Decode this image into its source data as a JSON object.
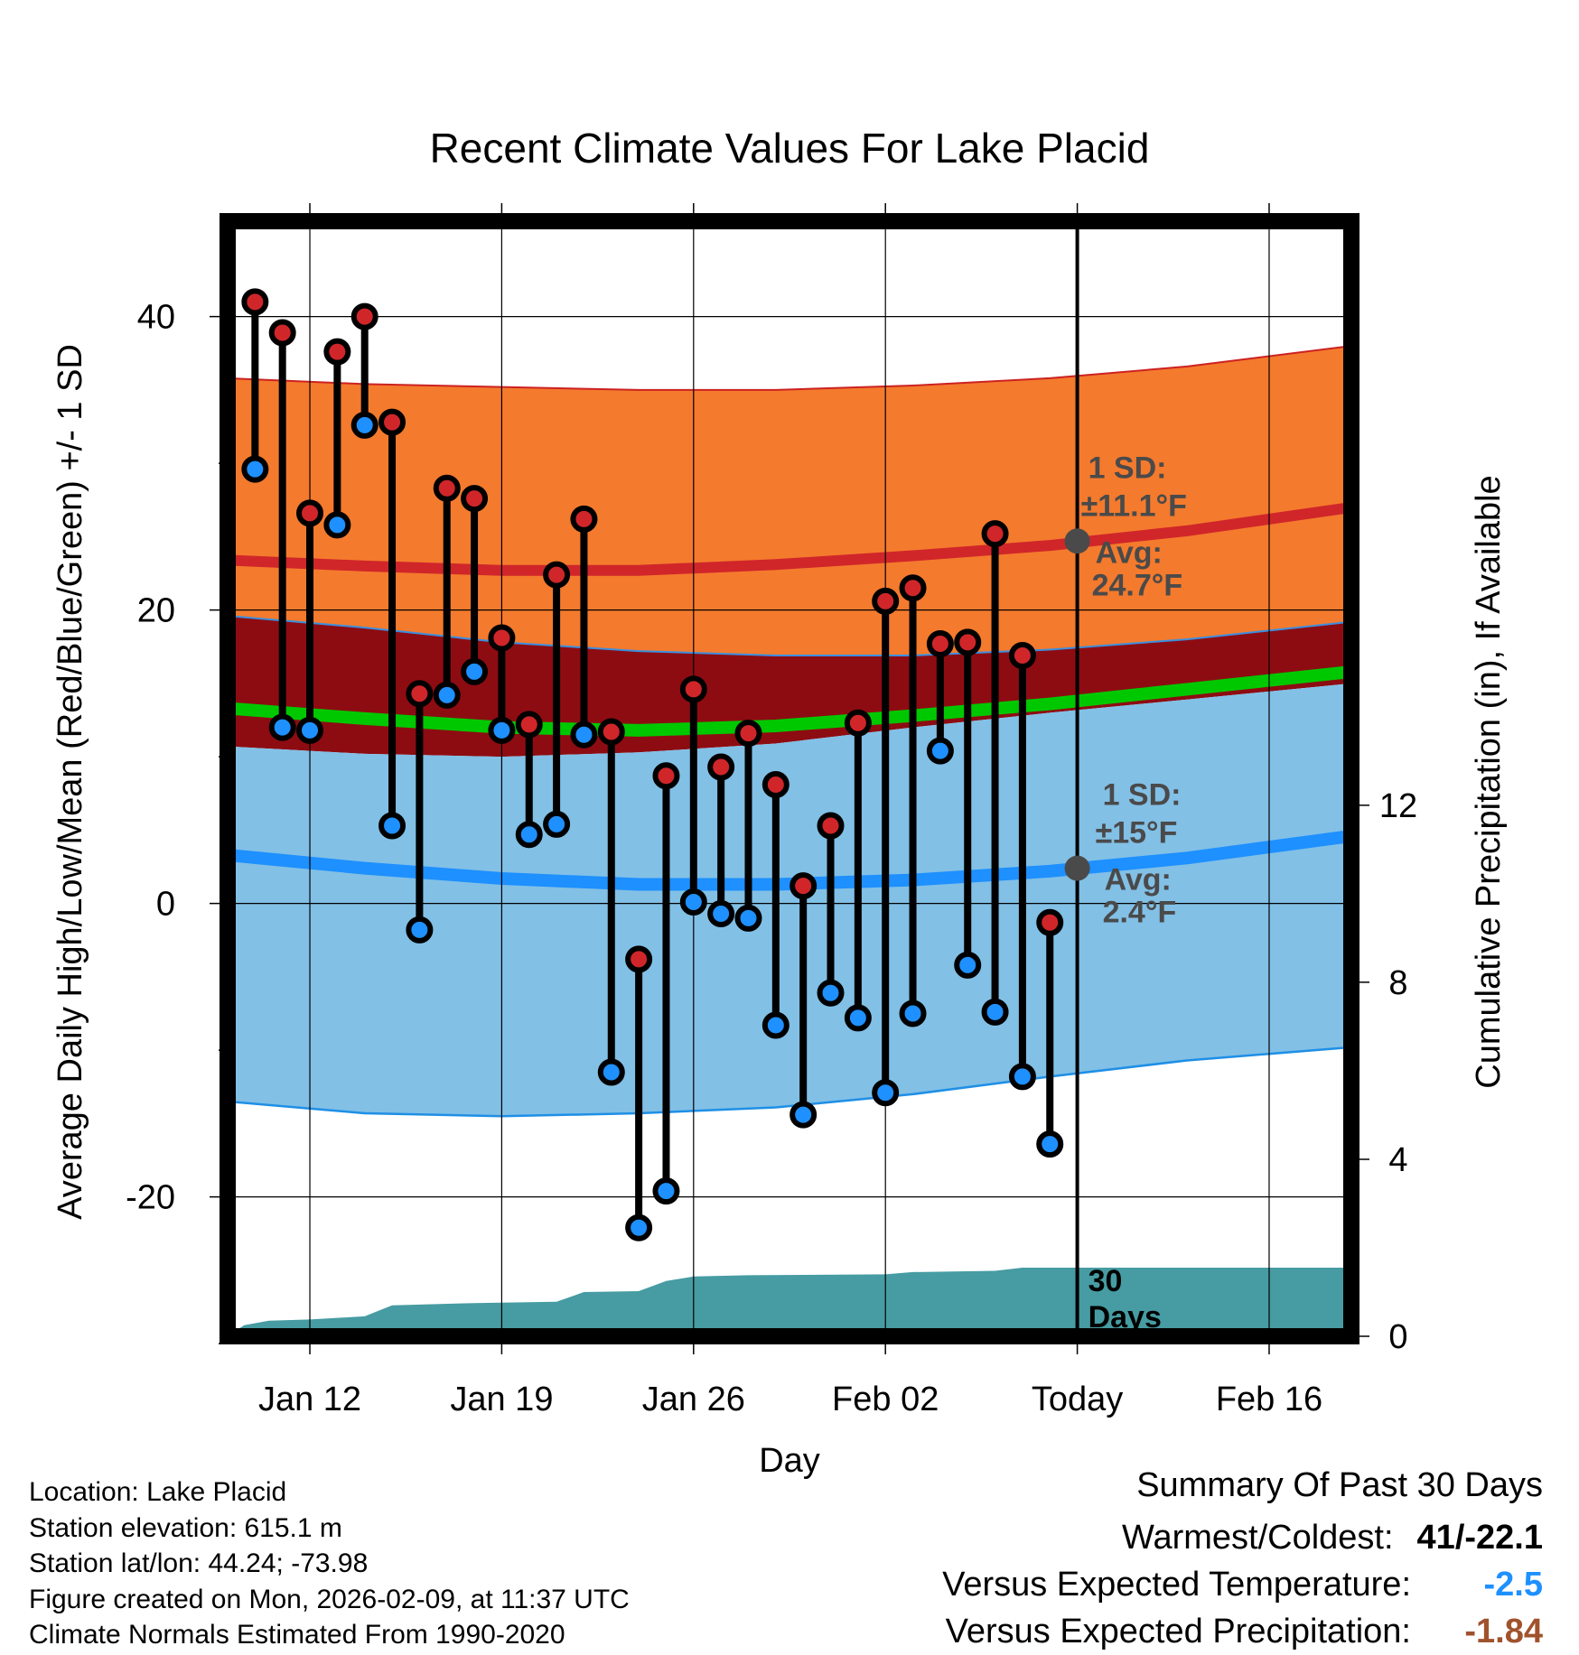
{
  "chart_data": {
    "type": "line",
    "title": "Recent Climate Values For Lake Placid",
    "xlabel": "Day",
    "ylabel": "Average Daily High/Low/Mean (Red/Blue/Green) +/- 1 SD",
    "y2label": "Cumulative Precipitation (in), If Available",
    "ylim": [
      -29.5,
      46.5
    ],
    "y_ticks": [
      -20,
      0,
      20,
      40
    ],
    "y2_ticks": [
      0,
      4,
      8,
      12
    ],
    "y2lim": [
      0,
      25.2
    ],
    "xlim": [
      0,
      41
    ],
    "x_tick_positions": [
      3,
      10,
      17,
      24,
      31,
      38
    ],
    "x_tick_labels": [
      "Jan 12",
      "Jan 19",
      "Jan 26",
      "Feb 02",
      "Today",
      "Feb 16"
    ],
    "today_x": 31,
    "normal_x": [
      0,
      5,
      10,
      15,
      20,
      25,
      30,
      35,
      41
    ],
    "normal_high_avg": [
      23.4,
      23.0,
      22.7,
      22.7,
      23.1,
      23.7,
      24.4,
      25.4,
      27.0
    ],
    "normal_high_upper": [
      35.8,
      35.4,
      35.2,
      35.0,
      35.0,
      35.3,
      35.8,
      36.6,
      38.0
    ],
    "normal_high_lower": [
      19.6,
      18.8,
      17.8,
      17.2,
      16.9,
      16.9,
      17.3,
      18.0,
      19.2
    ],
    "normal_mean": [
      13.3,
      12.6,
      12.0,
      11.8,
      12.1,
      12.8,
      13.6,
      14.6,
      15.8
    ],
    "normal_low_avg": [
      3.3,
      2.4,
      1.7,
      1.3,
      1.3,
      1.6,
      2.2,
      3.1,
      4.6
    ],
    "normal_low_upper": [
      10.7,
      10.2,
      10.0,
      10.3,
      10.9,
      12.0,
      13.0,
      13.9,
      15.0
    ],
    "normal_low_lower": [
      -13.5,
      -14.3,
      -14.5,
      -14.3,
      -13.9,
      -13.0,
      -11.8,
      -10.7,
      -9.8
    ],
    "daily_x": [
      1,
      2,
      3,
      4,
      5,
      6,
      7,
      8,
      9,
      10,
      11,
      12,
      13,
      14,
      15,
      16,
      17,
      18,
      19,
      20,
      21,
      22,
      23,
      24,
      25,
      26,
      27,
      28,
      29,
      30
    ],
    "daily_high": [
      41.0,
      38.9,
      26.6,
      37.6,
      40.0,
      32.8,
      14.3,
      28.3,
      27.6,
      18.1,
      12.2,
      22.4,
      26.2,
      11.7,
      -3.8,
      8.7,
      14.6,
      9.3,
      11.6,
      8.1,
      1.2,
      5.3,
      12.3,
      20.6,
      21.5,
      17.7,
      17.8,
      25.2,
      16.9,
      -1.3
    ],
    "daily_low": [
      29.6,
      12.0,
      11.8,
      25.8,
      32.6,
      5.3,
      -1.8,
      14.2,
      15.8,
      11.8,
      4.7,
      5.4,
      11.5,
      -11.5,
      -22.1,
      -19.6,
      0.1,
      -0.7,
      -1.0,
      -8.3,
      -14.4,
      -6.1,
      -7.8,
      -12.9,
      -7.5,
      10.4,
      -4.2,
      -7.4,
      -11.8,
      -16.4
    ],
    "precip_x": [
      0,
      0.6,
      1.5,
      3,
      5,
      6,
      9,
      12,
      13,
      15,
      16,
      17,
      19,
      24,
      25,
      28,
      29,
      31,
      41
    ],
    "precip_cum": [
      0.0,
      0.25,
      0.35,
      0.38,
      0.45,
      0.7,
      0.75,
      0.78,
      1.0,
      1.02,
      1.25,
      1.35,
      1.38,
      1.4,
      1.45,
      1.48,
      1.55,
      1.55,
      1.55
    ],
    "annotations": {
      "high_sd_label": "1 SD:",
      "high_sd_value": "±11.1°F",
      "high_avg_label": "Avg:",
      "high_avg_value": "24.7°F",
      "low_sd_label": "1 SD:",
      "low_sd_value": "±15°F",
      "low_avg_label": "Avg:",
      "low_avg_value": "2.4°F",
      "days_label_1": "30",
      "days_label_2": "Days"
    },
    "colors": {
      "high_band": "#f47a2d",
      "high_avg": "#d0262a",
      "high_lower_band": "#8d0c12",
      "mean_line": "#00c800",
      "low_band": "#82c0e6",
      "low_avg": "#1e90ff",
      "precip": "#469ca2",
      "high_dot": "#d0262a",
      "low_dot": "#1e90ff",
      "annotation": "#4a4a4a"
    }
  },
  "footer": {
    "location": "Location: Lake Placid",
    "elevation": "Station elevation: 615.1 m",
    "latlon": "Station lat/lon: 44.24; -73.98",
    "created": "Figure created on Mon, 2026-02-09, at 11:37 UTC",
    "normals": "Climate Normals Estimated From 1990-2020"
  },
  "summary": {
    "title": "Summary Of Past 30 Days",
    "warmest_coldest_label": "Warmest/Coldest:",
    "warmest_coldest_value": "41/-22.1",
    "temp_label": "Versus Expected Temperature:",
    "temp_value": "-2.5",
    "temp_color": "#1e90ff",
    "precip_label": "Versus Expected Precipitation:",
    "precip_value": "-1.84",
    "precip_color": "#a0522d"
  }
}
